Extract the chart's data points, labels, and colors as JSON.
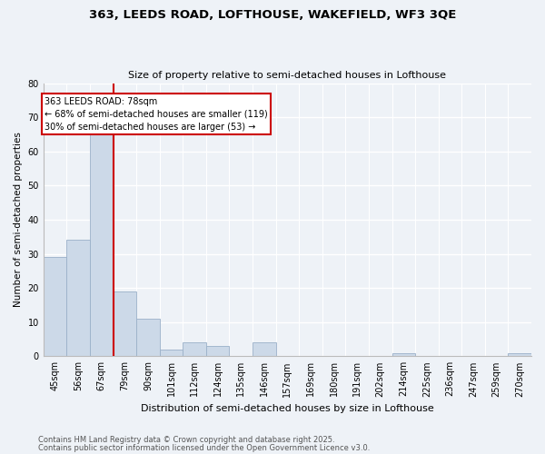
{
  "title1": "363, LEEDS ROAD, LOFTHOUSE, WAKEFIELD, WF3 3QE",
  "title2": "Size of property relative to semi-detached houses in Lofthouse",
  "xlabel": "Distribution of semi-detached houses by size in Lofthouse",
  "ylabel": "Number of semi-detached properties",
  "categories": [
    "45sqm",
    "56sqm",
    "67sqm",
    "79sqm",
    "90sqm",
    "101sqm",
    "112sqm",
    "124sqm",
    "135sqm",
    "146sqm",
    "157sqm",
    "169sqm",
    "180sqm",
    "191sqm",
    "202sqm",
    "214sqm",
    "225sqm",
    "236sqm",
    "247sqm",
    "259sqm",
    "270sqm"
  ],
  "values": [
    29,
    34,
    65,
    19,
    11,
    2,
    4,
    3,
    0,
    4,
    0,
    0,
    0,
    0,
    0,
    1,
    0,
    0,
    0,
    0,
    1
  ],
  "bar_color": "#ccd9e8",
  "bar_edge_color": "#9ab0c8",
  "property_line_bin": 3,
  "annotation_title": "363 LEEDS ROAD: 78sqm",
  "annotation_line1": "← 68% of semi-detached houses are smaller (119)",
  "annotation_line2": "30% of semi-detached houses are larger (53) →",
  "annotation_box_color": "#cc0000",
  "ylim": [
    0,
    80
  ],
  "yticks": [
    0,
    10,
    20,
    30,
    40,
    50,
    60,
    70,
    80
  ],
  "footer1": "Contains HM Land Registry data © Crown copyright and database right 2025.",
  "footer2": "Contains public sector information licensed under the Open Government Licence v3.0.",
  "bg_color": "#eef2f7",
  "grid_color": "#ffffff"
}
